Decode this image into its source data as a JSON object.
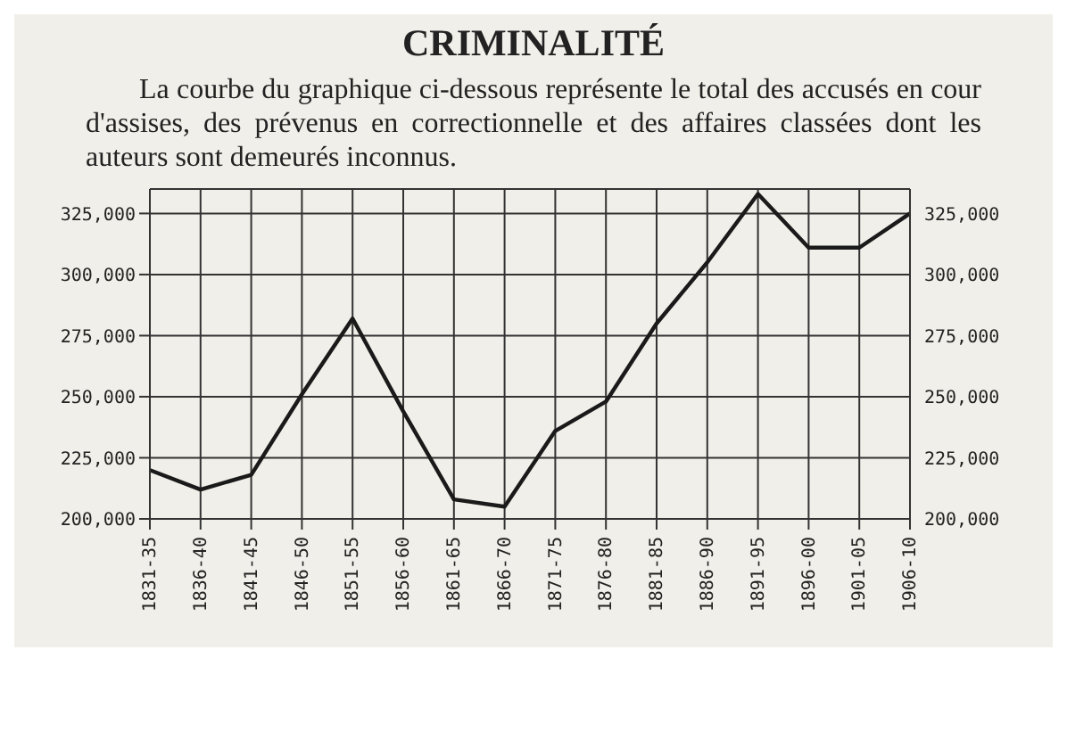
{
  "chart_data": {
    "type": "line",
    "title": "CRIMINALITÉ",
    "subtitle": "La courbe du graphique ci-dessous représente le total des accusés en cour d'assises, des prévenus en correctionnelle et des affaires classées dont les auteurs sont demeurés inconnus.",
    "categories": [
      "1831-35",
      "1836-40",
      "1841-45",
      "1846-50",
      "1851-55",
      "1856-60",
      "1861-65",
      "1866-70",
      "1871-75",
      "1876-80",
      "1881-85",
      "1886-90",
      "1891-95",
      "1896-00",
      "1901-05",
      "1906-10"
    ],
    "series": [
      {
        "color": "#1a1a1a",
        "values": [
          220000,
          212000,
          218000,
          251000,
          282000,
          244000,
          208000,
          205000,
          236000,
          248000,
          280000,
          305000,
          333000,
          311000,
          311000,
          325000
        ]
      }
    ],
    "ylim": [
      200000,
      335000
    ],
    "yticks": [
      {
        "value": 200000,
        "label": "200,000"
      },
      {
        "value": 225000,
        "label": "225,000"
      },
      {
        "value": 250000,
        "label": "250,000"
      },
      {
        "value": 275000,
        "label": "275,000"
      },
      {
        "value": 300000,
        "label": "300,000"
      },
      {
        "value": 325000,
        "label": "325,000"
      }
    ],
    "y2lim": [
      200000,
      335000
    ],
    "y2ticks": [
      {
        "value": 200000,
        "label": "200,000"
      },
      {
        "value": 225000,
        "label": "225,000"
      },
      {
        "value": 250000,
        "label": "250,000"
      },
      {
        "value": 275000,
        "label": "275,000"
      },
      {
        "value": 300000,
        "label": "300,000"
      },
      {
        "value": 325000,
        "label": "325,000"
      }
    ],
    "grid": true,
    "marker": "none",
    "line_style": "solid"
  }
}
